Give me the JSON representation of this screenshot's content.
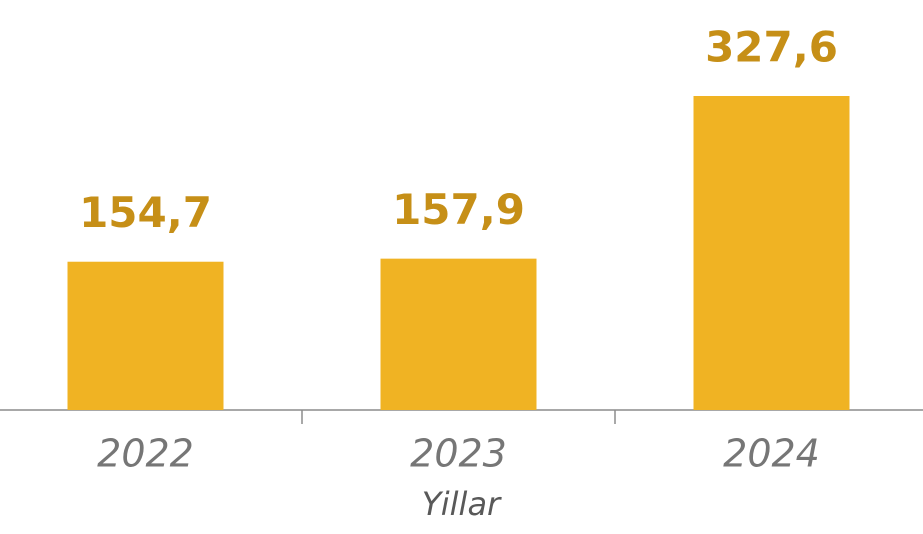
{
  "chart_data": {
    "type": "bar",
    "x_label": "Yillar",
    "categories": [
      "2022",
      "2023",
      "2024"
    ],
    "values": [
      154.7,
      157.9,
      327.6
    ],
    "value_labels": [
      "154,7",
      "157,9",
      "327,6"
    ],
    "color": "#f0b323",
    "label_color": "#c68f17"
  }
}
